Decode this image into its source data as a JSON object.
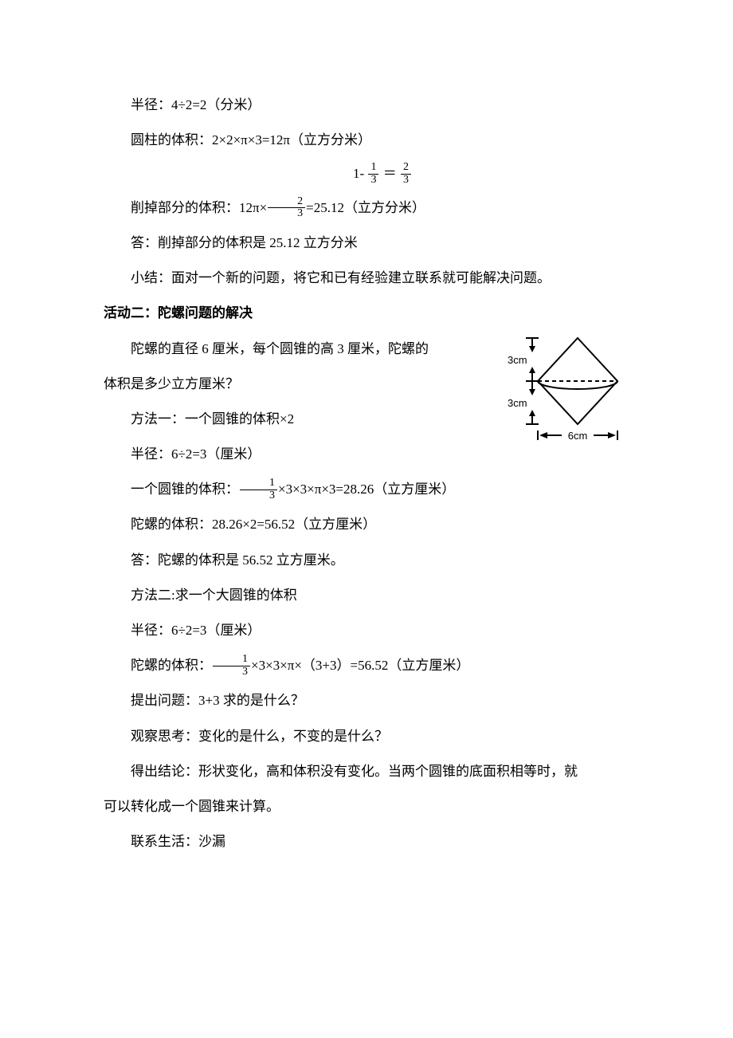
{
  "lines": {
    "l1": "半径：4÷2=2（分米）",
    "l2_a": "圆柱的体积：2×2×π×3=12π（立方分米）",
    "eq_before": "1- ",
    "eq_f1n": "1",
    "eq_f1d": "3",
    "eq_mid": " ＝ ",
    "eq_f2n": "2",
    "eq_f2d": "3",
    "l3_a": "削掉部分的体积：12π×",
    "l3_f_n": "2",
    "l3_f_d": "3",
    "l3_b": "=25.12（立方分米）",
    "l4": "答：削掉部分的体积是 25.12 立方分米",
    "l5": "小结：面对一个新的问题，将它和已有经验建立联系就可能解决问题。",
    "h1": "活动二：陀螺问题的解决",
    "p1a": "陀螺的直径 6 厘米，每个圆锥的高 3 厘米，陀螺的",
    "p1b": "体积是多少立方厘米？",
    "m1": "方法一：一个圆锥的体积×2",
    "m1r": "半径：6÷2=3（厘米）",
    "m1v_a": "一个圆锥的体积：",
    "m1v_fn": "1",
    "m1v_fd": "3",
    "m1v_b": "×3×3×π×3=28.26（立方厘米）",
    "m1t": "陀螺的体积：28.26×2=56.52（立方厘米）",
    "m1ans": "答：陀螺的体积是 56.52 立方厘米。",
    "m2": "方法二:求一个大圆锥的体积",
    "m2r": "半径：6÷2=3（厘米）",
    "m2v_a": "陀螺的体积：",
    "m2v_fn": "1",
    "m2v_fd": "3",
    "m2v_b": "×3×3×π×（3+3）=56.52（立方厘米）",
    "q1": "提出问题：3+3 求的是什么？",
    "q2": "观察思考：变化的是什么，不变的是什么？",
    "q3a": "得出结论：形状变化，高和体积没有变化。当两个圆锥的底面积相等时，就",
    "q3b": "可以转化成一个圆锥来计算。",
    "life": "联系生活：沙漏"
  },
  "diagram": {
    "top_label": "3cm",
    "mid_label": "3cm",
    "bottom_label": "6cm",
    "stroke": "#000000",
    "stroke_width": 2,
    "dash": "5,4"
  }
}
